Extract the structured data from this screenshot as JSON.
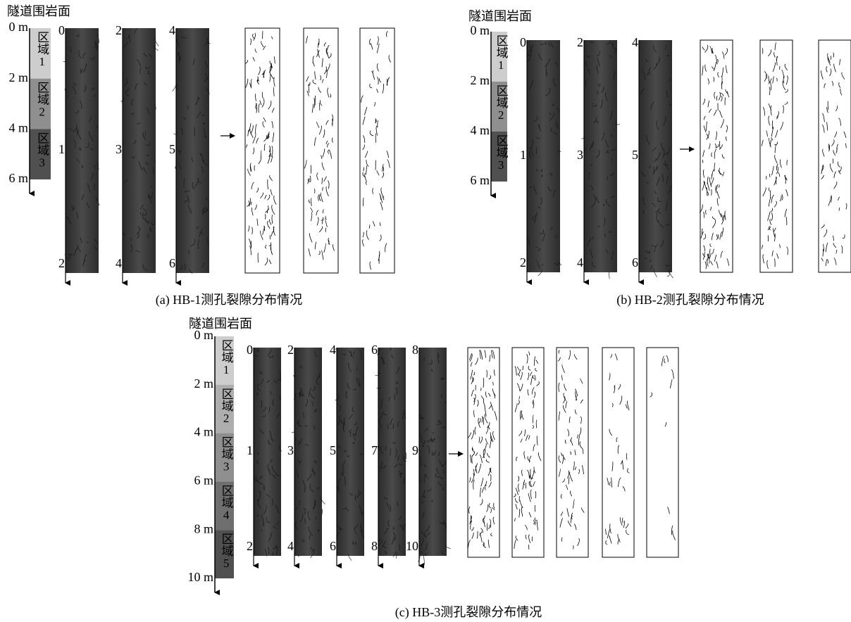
{
  "panels": [
    {
      "title": "隧道围岩面",
      "depth_labels": [
        "0 m",
        "2 m",
        "4 m",
        "6 m"
      ],
      "regions": [
        "区域1",
        "区域2",
        "区域3"
      ],
      "strips": [
        [
          "0",
          "1",
          "2"
        ],
        [
          "2",
          "3",
          "4"
        ],
        [
          "4",
          "5",
          "6"
        ]
      ],
      "caption": "(a) HB-1测孔裂隙分布情况"
    },
    {
      "title": "隧道围岩面",
      "depth_labels": [
        "0 m",
        "2 m",
        "4 m",
        "6 m"
      ],
      "regions": [
        "区域1",
        "区域2",
        "区域3"
      ],
      "strips": [
        [
          "0",
          "1",
          "2"
        ],
        [
          "2",
          "3",
          "4"
        ],
        [
          "4",
          "5",
          "6"
        ]
      ],
      "caption": "(b) HB-2测孔裂隙分布情况"
    },
    {
      "title": "隧道围岩面",
      "depth_labels": [
        "0 m",
        "2 m",
        "4 m",
        "6 m",
        "8 m",
        "10 m"
      ],
      "regions": [
        "区域1",
        "区域2",
        "区域3",
        "区域4",
        "区域5"
      ],
      "strips": [
        [
          "0",
          "1",
          "2"
        ],
        [
          "2",
          "3",
          "4"
        ],
        [
          "4",
          "5",
          "6"
        ],
        [
          "6",
          "7",
          "8"
        ],
        [
          "8",
          "9",
          "10"
        ]
      ],
      "caption": "(c) HB-3测孔裂隙分布情况"
    }
  ]
}
